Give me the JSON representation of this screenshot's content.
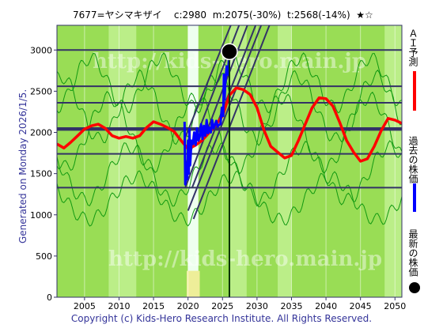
{
  "header": {
    "code_name": "7677=ヤシマキザイ",
    "current": "c:2980",
    "mean": "m:2075(-30%)",
    "target": "t:2568(-14%)",
    "stars": "★☆"
  },
  "side_label": "Generated on Monday 2026/1/5.",
  "watermark": "http://kids-hero.main.jp",
  "legend": {
    "ai_forecast": "ＡＩ予測",
    "past_price": "過去の株価",
    "latest_price": "最新の株価"
  },
  "copyright": "Copyright (c) Kids-Hero Research Institute. All Rights Reserved.",
  "colors": {
    "background": "#99dd55",
    "light_band": "#bbee88",
    "white_band": "#eeffee",
    "grid": "#333366",
    "forecast": "#ff0000",
    "past": "#0000ff",
    "green_lines": "#119911"
  },
  "chart_data": {
    "type": "line",
    "xlim": [
      2001,
      2051
    ],
    "ylim": [
      0,
      3300
    ],
    "x_ticks": [
      2005,
      2010,
      2015,
      2020,
      2025,
      2030,
      2035,
      2040,
      2045,
      2050
    ],
    "y_ticks": [
      0,
      500,
      1000,
      1500,
      2000,
      2500,
      3000
    ],
    "horizontal_levels": [
      3000,
      2560,
      2360,
      2050,
      2030,
      1740,
      1330
    ],
    "latest_point": {
      "x": 2026,
      "y": 2980
    },
    "series": [
      {
        "name": "ＡＩ予測",
        "color": "#ff0000",
        "x": [
          2001,
          2002,
          2003,
          2004,
          2005,
          2006,
          2007,
          2008,
          2009,
          2010,
          2011,
          2012,
          2013,
          2014,
          2015,
          2016,
          2017,
          2018,
          2019,
          2020,
          2021,
          2022,
          2023,
          2024,
          2025,
          2026,
          2027,
          2028,
          2029,
          2030,
          2031,
          2032,
          2033,
          2034,
          2035,
          2036,
          2037,
          2038,
          2039,
          2040,
          2041,
          2042,
          2043,
          2044,
          2045,
          2046,
          2047,
          2048,
          2049,
          2050,
          2051
        ],
        "y": [
          1860,
          1810,
          1880,
          1960,
          2040,
          2080,
          2100,
          2050,
          1960,
          1930,
          1950,
          1930,
          1960,
          2060,
          2130,
          2100,
          2060,
          2010,
          1900,
          1800,
          1840,
          1900,
          1990,
          2090,
          2200,
          2450,
          2540,
          2520,
          2460,
          2300,
          2030,
          1830,
          1760,
          1690,
          1720,
          1900,
          2100,
          2300,
          2420,
          2410,
          2320,
          2120,
          1900,
          1760,
          1650,
          1680,
          1830,
          2020,
          2170,
          2150,
          2110
        ]
      },
      {
        "name": "過去の株価",
        "color": "#0000ff",
        "x": [
          2019.5,
          2019.6,
          2019.8,
          2019.9,
          2020.0,
          2020.1,
          2020.2,
          2020.3,
          2020.4,
          2020.5,
          2020.7,
          2020.9,
          2021.1,
          2021.3,
          2021.5,
          2021.7,
          2021.9,
          2022.1,
          2022.3,
          2022.5,
          2022.7,
          2022.9,
          2023.1,
          2023.3,
          2023.5,
          2023.7,
          2023.9,
          2024.1,
          2024.3,
          2024.5,
          2024.7,
          2024.9,
          2025.1,
          2025.2,
          2025.3,
          2025.4,
          2025.6,
          2025.8,
          2026.0
        ],
        "y": [
          2130,
          1370,
          1620,
          1430,
          1900,
          1500,
          2040,
          1600,
          1750,
          1900,
          1860,
          2000,
          1850,
          2050,
          1900,
          1950,
          2100,
          1920,
          2080,
          1960,
          2150,
          1990,
          2060,
          2000,
          2150,
          2050,
          2090,
          2140,
          2070,
          2090,
          2100,
          2300,
          2200,
          2700,
          2400,
          2600,
          2800,
          2700,
          2980
        ]
      }
    ]
  }
}
